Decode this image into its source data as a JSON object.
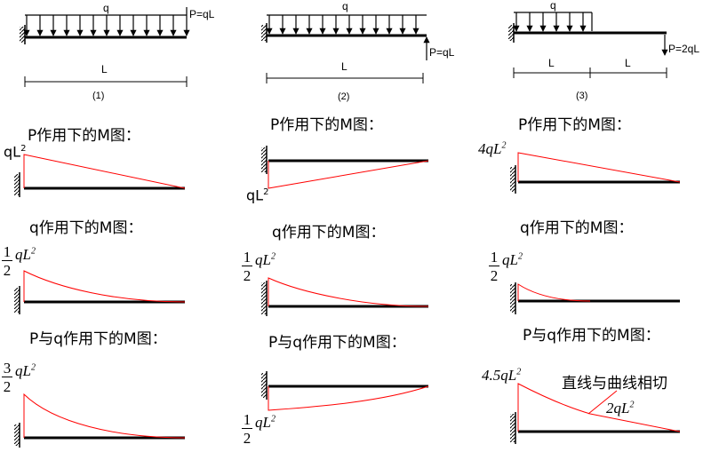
{
  "beams": [
    {
      "load_label": "q",
      "point_label": "P=qL",
      "span_labels": [
        "L"
      ],
      "case_label": "(1)"
    },
    {
      "load_label": "q",
      "point_label": "P=qL",
      "span_labels": [
        "L"
      ],
      "case_label": "(2)"
    },
    {
      "load_label": "q",
      "point_label": "P=2qL",
      "span_labels": [
        "L",
        "L"
      ],
      "case_label": "(3)"
    }
  ],
  "headings": {
    "p_only": "P作用下的M图：",
    "q_only": "q作用下的M图：",
    "combined": "P与q作用下的M图："
  },
  "values": {
    "c1_p": "qL",
    "c1_p_exp": "2",
    "c2_p": "qL",
    "c2_p_exp": "2",
    "c3_p": "4qL",
    "c3_p_exp": "2",
    "half_num": "1",
    "half_den": "2",
    "half_var": "qL",
    "half_exp": "2",
    "three_num": "3",
    "three_den": "2",
    "c3_comb": "4.5qL",
    "c3_comb_exp": "2",
    "c3_mid": "2qL",
    "c3_mid_exp": "2"
  },
  "annotation": "直线与曲线相切",
  "colors": {
    "moment_line": "#ff0000",
    "beam": "#000000"
  }
}
